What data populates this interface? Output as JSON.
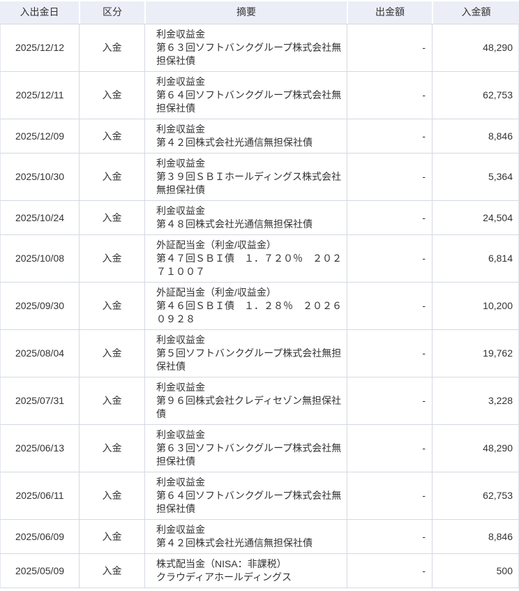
{
  "colors": {
    "header_bg": "#eceef7",
    "header_separator": "#ffffff",
    "border_color": "#d3d8e2",
    "edge_border": "#e2e6ee",
    "text_color": "#333333"
  },
  "table": {
    "headers": [
      {
        "label": "入出金日"
      },
      {
        "label": "区分"
      },
      {
        "label": "摘要"
      },
      {
        "label": "出金額"
      },
      {
        "label": "入金額"
      }
    ],
    "rows": [
      {
        "date": "2025/12/12",
        "category": "入金",
        "description": [
          "利金収益金",
          "第６３回ソフトバンクグループ株式会社無担保社債"
        ],
        "withdrawal": "-",
        "deposit": "48,290"
      },
      {
        "date": "2025/12/11",
        "category": "入金",
        "description": [
          "利金収益金",
          "第６４回ソフトバンクグループ株式会社無担保社債"
        ],
        "withdrawal": "-",
        "deposit": "62,753"
      },
      {
        "date": "2025/12/09",
        "category": "入金",
        "description": [
          "利金収益金",
          "第４２回株式会社光通信無担保社債"
        ],
        "withdrawal": "-",
        "deposit": "8,846"
      },
      {
        "date": "2025/10/30",
        "category": "入金",
        "description": [
          "利金収益金",
          "第３９回ＳＢＩホールディングス株式会社無担保社債"
        ],
        "withdrawal": "-",
        "deposit": "5,364"
      },
      {
        "date": "2025/10/24",
        "category": "入金",
        "description": [
          "利金収益金",
          "第４８回株式会社光通信無担保社債"
        ],
        "withdrawal": "-",
        "deposit": "24,504"
      },
      {
        "date": "2025/10/08",
        "category": "入金",
        "description": [
          "外証配当金（利金/収益金）",
          "第４７回ＳＢＩ債　１．７２０％　２０２７１００７"
        ],
        "withdrawal": "-",
        "deposit": "6,814"
      },
      {
        "date": "2025/09/30",
        "category": "入金",
        "description": [
          "外証配当金（利金/収益金）",
          "第４６回ＳＢＩ債　１．２８％　２０２６０９２８"
        ],
        "withdrawal": "-",
        "deposit": "10,200"
      },
      {
        "date": "2025/08/04",
        "category": "入金",
        "description": [
          "利金収益金",
          "第５回ソフトバンクグループ株式会社無担保社債"
        ],
        "withdrawal": "-",
        "deposit": "19,762"
      },
      {
        "date": "2025/07/31",
        "category": "入金",
        "description": [
          "利金収益金",
          "第９６回株式会社クレディセゾン無担保社債"
        ],
        "withdrawal": "-",
        "deposit": "3,228"
      },
      {
        "date": "2025/06/13",
        "category": "入金",
        "description": [
          "利金収益金",
          "第６３回ソフトバンクグループ株式会社無担保社債"
        ],
        "withdrawal": "-",
        "deposit": "48,290"
      },
      {
        "date": "2025/06/11",
        "category": "入金",
        "description": [
          "利金収益金",
          "第６４回ソフトバンクグループ株式会社無担保社債"
        ],
        "withdrawal": "-",
        "deposit": "62,753"
      },
      {
        "date": "2025/06/09",
        "category": "入金",
        "description": [
          "利金収益金",
          "第４２回株式会社光通信無担保社債"
        ],
        "withdrawal": "-",
        "deposit": "8,846"
      },
      {
        "date": "2025/05/09",
        "category": "入金",
        "description": [
          "株式配当金（NISA：非課税）",
          "クラウディアホールディングス"
        ],
        "withdrawal": "-",
        "deposit": "500"
      }
    ]
  }
}
